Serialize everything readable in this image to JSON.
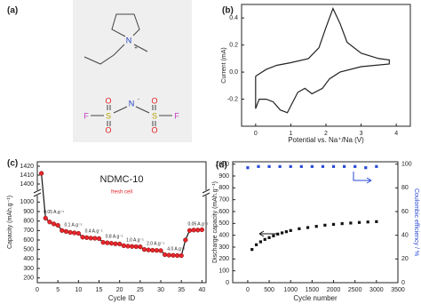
{
  "panel_a": {
    "label": "(a)",
    "cation": {
      "atom": "N",
      "charge": "+"
    },
    "anion": {
      "atoms": [
        "F",
        "S",
        "N",
        "S",
        "F"
      ],
      "charge": "-",
      "oxygens": [
        "O",
        "O",
        "O",
        "O"
      ]
    }
  },
  "chart_data": [
    {
      "type": "line",
      "label": "(b)",
      "x_label": "Potential vs. Na⁺/Na (V)",
      "y_label": "Current (mA)",
      "x": [
        0,
        0.3,
        0.6,
        1.0,
        1.5,
        1.8,
        2.0,
        2.2,
        2.4,
        2.6,
        3.0,
        3.5,
        3.8,
        3.8,
        3.0,
        2.4,
        2.1,
        1.9,
        1.6,
        1.4,
        1.2,
        0.9,
        0.7,
        0.5,
        0.3,
        0.1,
        0.0,
        0.0
      ],
      "series": [
        {
          "color": "#222222",
          "values": [
            -0.03,
            0.02,
            0.05,
            0.07,
            0.1,
            0.18,
            0.33,
            0.47,
            0.36,
            0.22,
            0.14,
            0.1,
            0.09,
            0.06,
            0.04,
            0.0,
            -0.05,
            -0.12,
            -0.16,
            -0.12,
            -0.15,
            -0.3,
            -0.28,
            -0.22,
            -0.2,
            -0.2,
            -0.27,
            -0.03
          ]
        }
      ],
      "xlim": [
        -0.4,
        4.4
      ],
      "xticks": [
        0,
        1,
        2,
        3,
        4
      ],
      "ylim": [
        -0.4,
        0.5
      ],
      "yticks": [
        -0.2,
        {
          "value": 0,
          "label": "0.0"
        },
        0.2,
        0.4
      ]
    },
    {
      "type": "line",
      "label": "(c)",
      "title": "NDMC-10",
      "note": "fresh cell",
      "x_label": "Cycle ID",
      "y_label": "Capacity (mAh.g⁻¹)",
      "x": [
        1,
        2,
        3,
        4,
        5,
        6,
        7,
        8,
        9,
        10,
        11,
        12,
        13,
        14,
        15,
        16,
        17,
        18,
        19,
        20,
        21,
        22,
        23,
        24,
        25,
        26,
        27,
        28,
        29,
        30,
        31,
        32,
        33,
        34,
        35,
        36,
        37,
        38,
        39,
        40
      ],
      "series": [
        {
          "color": "#111111",
          "marker": "circle",
          "marker_color": "#e8262b",
          "values": [
            1412,
            830,
            790,
            770,
            755,
            700,
            690,
            680,
            675,
            670,
            630,
            625,
            620,
            618,
            615,
            575,
            570,
            565,
            560,
            558,
            540,
            535,
            532,
            530,
            528,
            500,
            495,
            492,
            490,
            488,
            445,
            440,
            438,
            436,
            435,
            600,
            700,
            705,
            705,
            708
          ]
        }
      ],
      "annotations": [
        "0.05 A.g⁻¹",
        "0.1 A.g⁻¹",
        "0.4 A.g⁻¹",
        "0.8 A.g⁻¹",
        "1.0 A.g⁻¹",
        "2.0 A.g⁻¹",
        "4.0 A.g⁻¹",
        "0.05 A.g⁻¹"
      ],
      "xlim": [
        0,
        41
      ],
      "xticks": [
        0,
        5,
        10,
        15,
        20,
        25,
        30,
        35,
        40
      ],
      "ylim": [
        150,
        1050
      ],
      "yticks": [
        200,
        300,
        400,
        500,
        600,
        700,
        800,
        900,
        1000
      ],
      "ybreak": {
        "ylim": [
          1395,
          1425
        ],
        "yticks": [
          1400,
          1410,
          1420
        ]
      }
    },
    {
      "type": "scatter",
      "label": "(d)",
      "x_label": "Cycle number",
      "y_label": "Discharge capacity (mAh.g⁻¹)",
      "y2_label": "Coulombic efficiency / %",
      "series": [
        {
          "color": "#111111",
          "marker": "square",
          "x": [
            100,
            200,
            300,
            400,
            500,
            600,
            700,
            800,
            900,
            1000,
            1200,
            1400,
            1600,
            1800,
            2000,
            2200,
            2400,
            2600,
            2800,
            3000
          ],
          "values": [
            280,
            320,
            345,
            365,
            380,
            395,
            410,
            420,
            430,
            440,
            455,
            465,
            475,
            485,
            492,
            498,
            503,
            508,
            512,
            515
          ]
        },
        {
          "color": "#2a4bd7",
          "marker": "square",
          "axis": "y2",
          "x": [
            0,
            250,
            500,
            750,
            1000,
            1250,
            1500,
            1750,
            2000,
            2250,
            2500,
            2750,
            3000
          ],
          "values": [
            97,
            98,
            98,
            98,
            98,
            98,
            98,
            98,
            98,
            98,
            98,
            97,
            98
          ]
        }
      ],
      "xlim": [
        -350,
        3500
      ],
      "xticks": [
        0,
        500,
        1000,
        1500,
        2000,
        2500,
        3000,
        3500
      ],
      "ylim": [
        0,
        1020
      ],
      "yticks": [
        0,
        100,
        200,
        300,
        400,
        500,
        600,
        700,
        800,
        900,
        1000
      ],
      "y2lim": [
        0,
        102
      ],
      "y2ticks": [
        0,
        20,
        40,
        60,
        80,
        100
      ]
    }
  ]
}
